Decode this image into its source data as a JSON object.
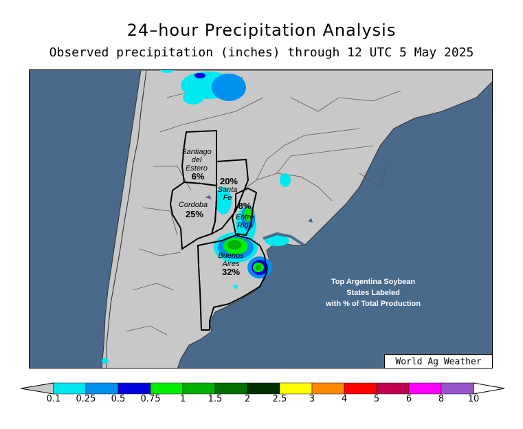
{
  "header": {
    "title": "24–hour Precipitation Analysis",
    "subtitle": "Observed precipitation (inches) through 12 UTC 5 May 2025"
  },
  "map": {
    "region": "Argentina / Southern South America",
    "land_color": "#c8c8c8",
    "ocean_color": "#4a6a8c",
    "states": [
      {
        "name_lines": [
          "Santiago",
          "del",
          "Estero"
        ],
        "pct": "6%"
      },
      {
        "name_lines": [
          "Santa",
          "Fe"
        ],
        "pct": "20%"
      },
      {
        "name_lines": [
          "Cordoba"
        ],
        "pct": "25%"
      },
      {
        "name_lines": [
          "Entre",
          "Rios"
        ],
        "pct": "8%"
      },
      {
        "name_lines": [
          "Buenos",
          "Aires"
        ],
        "pct": "32%"
      }
    ],
    "note_lines": [
      "Top Argentina Soybean",
      "States Labeled",
      "with % of Total Production"
    ],
    "credit": "World Ag Weather"
  },
  "legend": {
    "labels": [
      "0.1",
      "0.25",
      "0.5",
      "0.75",
      "1",
      "1.5",
      "2",
      "2.5",
      "3",
      "4",
      "5",
      "6",
      "8",
      "10"
    ],
    "colors": [
      "#00e8f0",
      "#0090f0",
      "#0000e0",
      "#00ee00",
      "#00b000",
      "#007000",
      "#003000",
      "#ffff00",
      "#ff8800",
      "#ff0000",
      "#c00050",
      "#ff00ff",
      "#9955cc"
    ],
    "under_color": "#c8c8c8",
    "over_color": "#ffffff"
  }
}
